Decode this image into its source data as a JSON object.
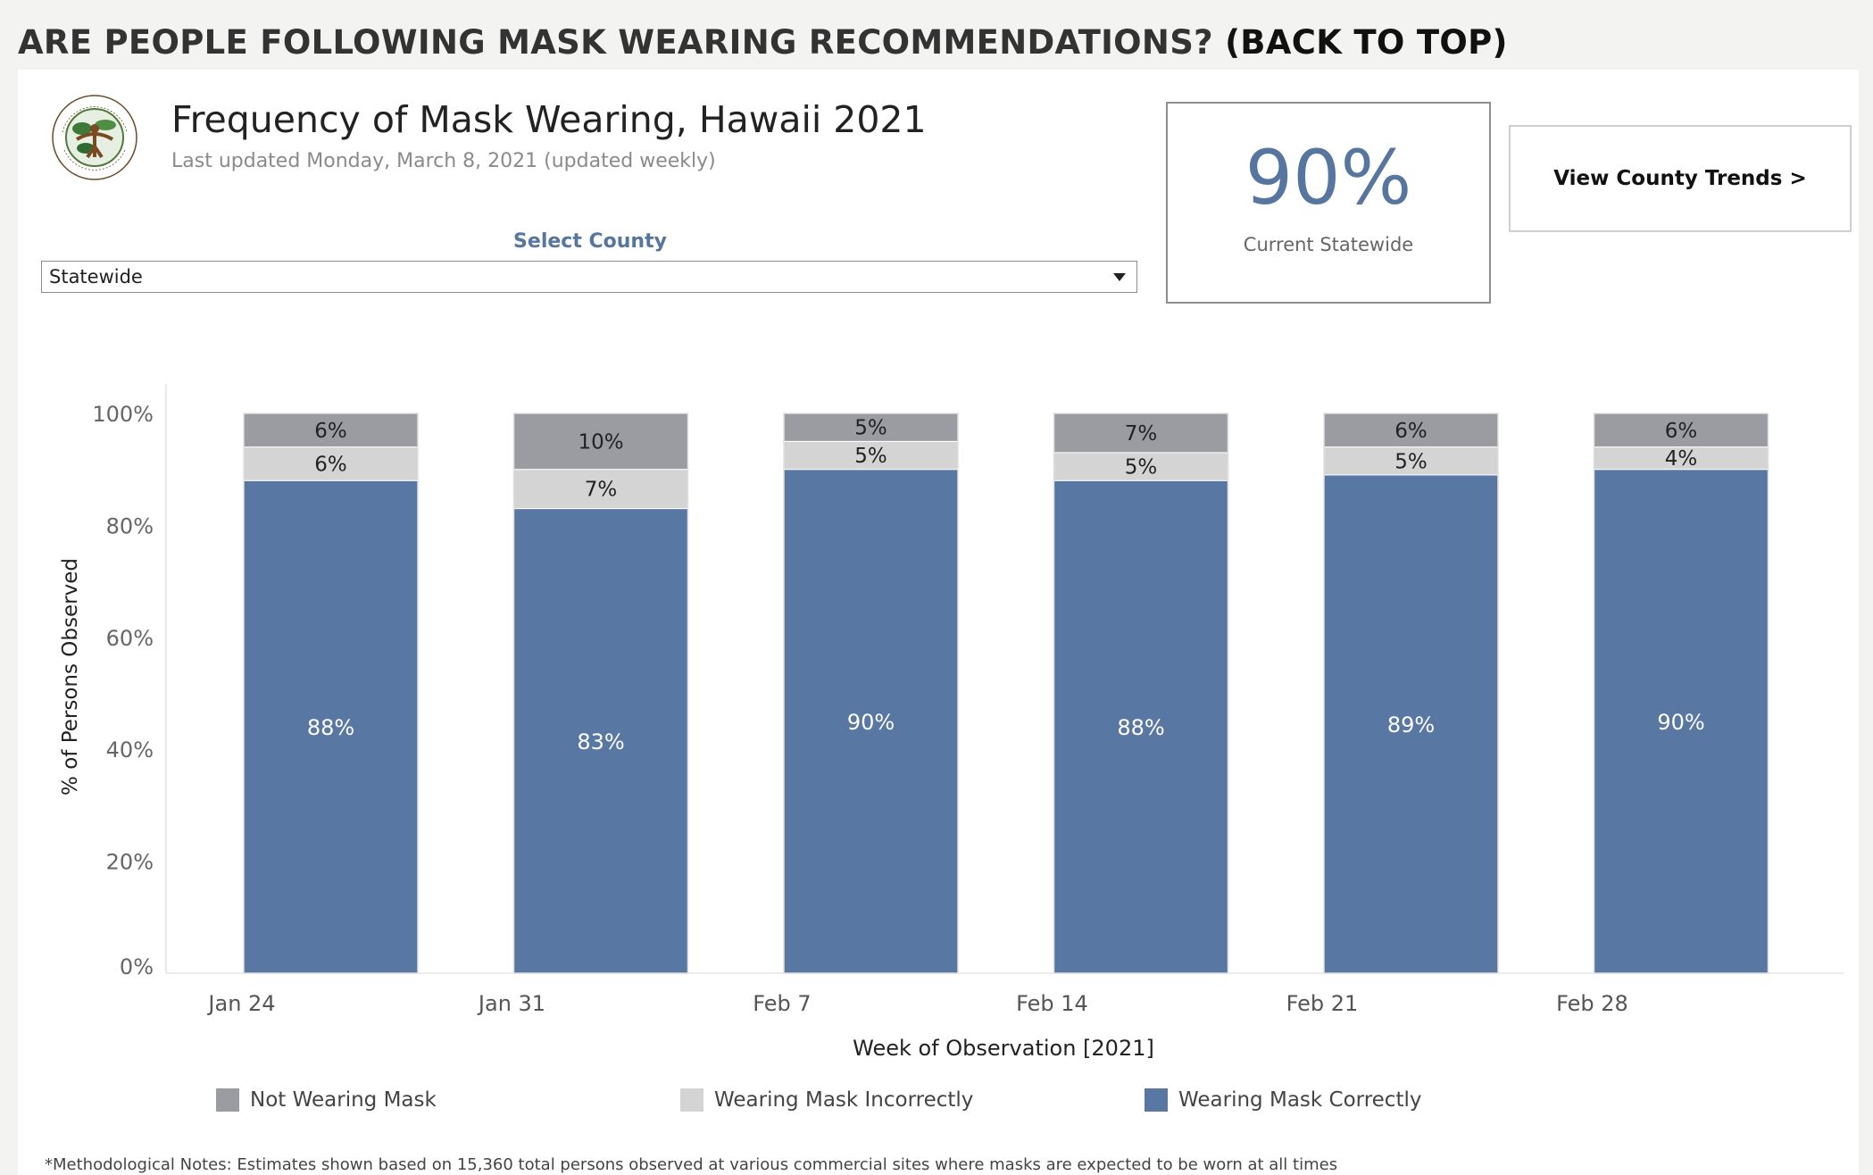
{
  "header": {
    "question": "ARE PEOPLE FOLLOWING MASK WEARING RECOMMENDATIONS?",
    "back_link": "(BACK TO TOP)"
  },
  "logo": {
    "text_top": "HAWAII STATE",
    "text_bottom": "DEPARTMENT OF HEALTH"
  },
  "dashboard": {
    "title": "Frequency of Mask Wearing, Hawaii 2021",
    "subtitle": "Last updated Monday, March 8, 2021 (updated weekly)"
  },
  "filter": {
    "label": "Select County",
    "selected": "Statewide"
  },
  "kpi": {
    "value": "90%",
    "caption": "Current Statewide"
  },
  "trend_button": {
    "label": "View County Trends >"
  },
  "colors": {
    "not_wearing": "#9a9ca2",
    "incorrect": "#d4d4d4",
    "correct": "#5877a3",
    "accent": "#56759f"
  },
  "chart_data": {
    "type": "bar",
    "stacked": true,
    "categories": [
      "Jan 24",
      "Jan 31",
      "Feb 7",
      "Feb 14",
      "Feb 21",
      "Feb 28"
    ],
    "series": [
      {
        "name": "Wearing Mask Correctly",
        "values": [
          88,
          83,
          90,
          88,
          89,
          90
        ],
        "labels": [
          "88%",
          "83%",
          "90%",
          "88%",
          "89%",
          "90%"
        ]
      },
      {
        "name": "Wearing Mask Incorrectly",
        "values": [
          6,
          7,
          5,
          5,
          5,
          4
        ],
        "labels": [
          "6%",
          "7%",
          "5%",
          "5%",
          "5%",
          "4%"
        ]
      },
      {
        "name": "Not Wearing Mask",
        "values": [
          6,
          10,
          5,
          7,
          6,
          6
        ],
        "labels": [
          "6%",
          "10%",
          "5%",
          "7%",
          "6%",
          "6%"
        ]
      }
    ],
    "xlabel": "Week of Observation [2021]",
    "ylabel": "% of Persons Observed",
    "ylim": [
      0,
      100
    ],
    "yticks": [
      "0%",
      "20%",
      "40%",
      "60%",
      "80%",
      "100%"
    ],
    "legend_position": "bottom",
    "legend": [
      "Not Wearing Mask",
      "Wearing Mask Incorrectly",
      "Wearing Mask Correctly"
    ]
  },
  "note": "*Methodological Notes: Estimates shown based on 15,360 total persons observed at various commercial sites where masks are expected to be worn at all times"
}
